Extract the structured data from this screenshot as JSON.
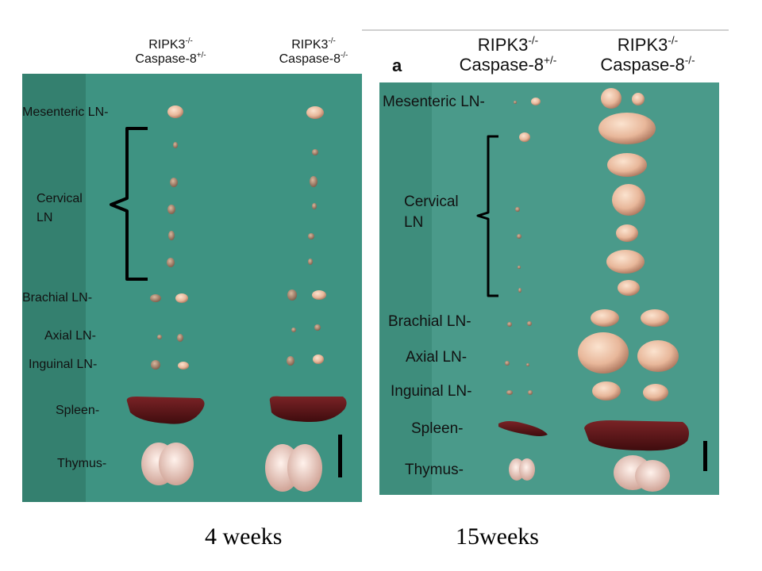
{
  "panels": [
    {
      "header": {
        "col1_line1": "RIPK3",
        "col1_line1_sup": "-/-",
        "col1_line2": "Caspase-8",
        "col1_line2_sup": "+/-",
        "col2_line1": "RIPK3",
        "col2_line1_sup": "-/-",
        "col2_line2": "Caspase-8",
        "col2_line2_sup": "-/-"
      },
      "labels": {
        "mesenteric": "Mesenteric LN-",
        "cervical_1": "Cervical",
        "cervical_2": "LN",
        "brachial": "Brachial LN-",
        "axial": "Axial LN-",
        "inguinal": "Inguinal LN-",
        "spleen": "Spleen-",
        "thymus": "Thymus-"
      },
      "caption": "4 weeks"
    },
    {
      "panel_letter": "a",
      "header": {
        "col1_line1": "RIPK3",
        "col1_line1_sup": "-/-",
        "col1_line2": "Caspase-8",
        "col1_line2_sup": "+/-",
        "col2_line1": "RIPK3",
        "col2_line1_sup": "-/-",
        "col2_line2": "Caspase-8",
        "col2_line2_sup": "-/-"
      },
      "labels": {
        "mesenteric": "Mesenteric LN-",
        "cervical_1": "Cervical",
        "cervical_2": "LN",
        "brachial": "Brachial LN-",
        "axial": "Axial LN-",
        "inguinal": "Inguinal LN-",
        "spleen": "Spleen-",
        "thymus": "Thymus-"
      },
      "caption": "15weeks"
    }
  ],
  "colors": {
    "background": "#3e9382",
    "lymph_node": "#e8b79a",
    "spleen": "#5b1416",
    "thymus": "#e9c3b6",
    "text": "#111111"
  }
}
